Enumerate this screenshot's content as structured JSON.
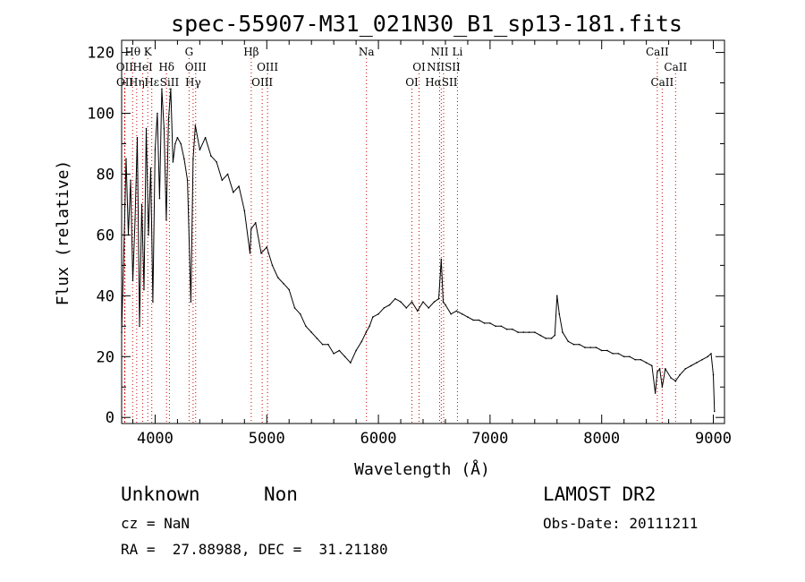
{
  "chart_data": {
    "type": "line",
    "title": "spec-55907-M31_021N30_B1_sp13-181.fits",
    "xlabel": "Wavelength (Å)",
    "ylabel": "Flux (relative)",
    "xlim": [
      3700,
      9100
    ],
    "ylim": [
      -2,
      124
    ],
    "xticks": [
      4000,
      5000,
      6000,
      7000,
      8000,
      9000
    ],
    "yticks": [
      0,
      20,
      40,
      60,
      80,
      100,
      120
    ],
    "grid": false,
    "line_color": "#000000",
    "marker_color": "#cc0000",
    "series": [
      {
        "x": [
          3700,
          3720,
          3740,
          3760,
          3780,
          3800,
          3820,
          3840,
          3860,
          3880,
          3900,
          3920,
          3940,
          3960,
          3980,
          4000,
          4020,
          4040,
          4060,
          4080,
          4100,
          4120,
          4140,
          4160,
          4180,
          4200,
          4230,
          4260,
          4290,
          4320,
          4340,
          4360,
          4400,
          4450,
          4500,
          4550,
          4600,
          4650,
          4700,
          4750,
          4800,
          4850,
          4860,
          4900,
          4950,
          5000,
          5050,
          5100,
          5150,
          5200,
          5250,
          5300,
          5350,
          5400,
          5450,
          5500,
          5550,
          5600,
          5650,
          5700,
          5750,
          5800,
          5850,
          5890,
          5920,
          5950,
          6000,
          6050,
          6100,
          6150,
          6200,
          6250,
          6300,
          6350,
          6400,
          6450,
          6500,
          6540,
          6563,
          6580,
          6600,
          6650,
          6700,
          6750,
          6800,
          6850,
          6900,
          6950,
          7000,
          7050,
          7100,
          7150,
          7200,
          7250,
          7300,
          7350,
          7400,
          7450,
          7500,
          7550,
          7580,
          7600,
          7620,
          7650,
          7700,
          7750,
          7800,
          7850,
          7900,
          7950,
          8000,
          8050,
          8100,
          8150,
          8200,
          8250,
          8300,
          8350,
          8400,
          8450,
          8480,
          8498,
          8520,
          8542,
          8570,
          8620,
          8662,
          8700,
          8750,
          8800,
          8850,
          8900,
          8950,
          8980,
          9000,
          9010
        ],
        "y": [
          28,
          55,
          85,
          60,
          78,
          45,
          65,
          92,
          30,
          70,
          42,
          95,
          60,
          82,
          38,
          88,
          100,
          72,
          108,
          95,
          65,
          98,
          108,
          84,
          90,
          92,
          90,
          85,
          78,
          38,
          85,
          96,
          88,
          92,
          86,
          84,
          78,
          80,
          74,
          76,
          68,
          54,
          62,
          64,
          54,
          56,
          50,
          46,
          44,
          42,
          36,
          34,
          30,
          28,
          26,
          24,
          24,
          21,
          22,
          20,
          18,
          22,
          25,
          28,
          30,
          33,
          34,
          36,
          37,
          39,
          38,
          36,
          38,
          35,
          38,
          36,
          38,
          39,
          52,
          38,
          37,
          34,
          35,
          34,
          33,
          32,
          32,
          31,
          31,
          30,
          30,
          29,
          29,
          28,
          28,
          28,
          28,
          27,
          26,
          26,
          27,
          40,
          34,
          28,
          25,
          24,
          24,
          23,
          23,
          23,
          22,
          22,
          21,
          21,
          20,
          20,
          19,
          19,
          18,
          17,
          8,
          15,
          16,
          10,
          16,
          13,
          12,
          14,
          16,
          17,
          18,
          19,
          20,
          21,
          14,
          2
        ]
      }
    ],
    "line_markers": [
      {
        "label": "Hθ",
        "wavelength": 3798,
        "row": 1
      },
      {
        "label": "K",
        "wavelength": 3934,
        "row": 1
      },
      {
        "label": "Hε",
        "wavelength": 3970,
        "row": 3
      },
      {
        "label": "G",
        "wavelength": 4304,
        "row": 1
      },
      {
        "label": "Hβ",
        "wavelength": 4861,
        "row": 1
      },
      {
        "label": "Na",
        "wavelength": 5893,
        "row": 1
      },
      {
        "label": "NII",
        "wavelength": 6548,
        "row": 1
      },
      {
        "label": "Li",
        "wavelength": 6708,
        "row": 1
      },
      {
        "label": "CaII",
        "wavelength": 8498,
        "row": 1
      },
      {
        "label": "OII",
        "wavelength": 3727,
        "row": 2
      },
      {
        "label": "HeI",
        "wavelength": 3889,
        "row": 2
      },
      {
        "label": "Hδ",
        "wavelength": 4102,
        "row": 2
      },
      {
        "label": "OIII",
        "wavelength": 4363,
        "row": 2
      },
      {
        "label": "OIII",
        "wavelength": 5007,
        "row": 2
      },
      {
        "label": "OI",
        "wavelength": 6364,
        "row": 2
      },
      {
        "label": "NIISII",
        "wavelength": 6584,
        "row": 2
      },
      {
        "label": "CaII",
        "wavelength": 8662,
        "row": 2
      },
      {
        "label": "OII",
        "wavelength": 3729,
        "row": 3
      },
      {
        "label": "Hη",
        "wavelength": 3835,
        "row": 3
      },
      {
        "label": "SiII",
        "wavelength": 4128,
        "row": 3
      },
      {
        "label": "Hγ",
        "wavelength": 4340,
        "row": 3
      },
      {
        "label": "OIII",
        "wavelength": 4959,
        "row": 3
      },
      {
        "label": "OI",
        "wavelength": 6300,
        "row": 3
      },
      {
        "label": "HαSII",
        "wavelength": 6563,
        "row": 3
      },
      {
        "label": "CaII",
        "wavelength": 8542,
        "row": 3
      }
    ]
  },
  "info": {
    "class_label": "Unknown",
    "subclass_label": "Non",
    "survey": "LAMOST DR2",
    "cz": "cz = NaN",
    "obs_date": "Obs-Date: 20111211",
    "coords": "RA =  27.88988, DEC =  31.21180"
  }
}
